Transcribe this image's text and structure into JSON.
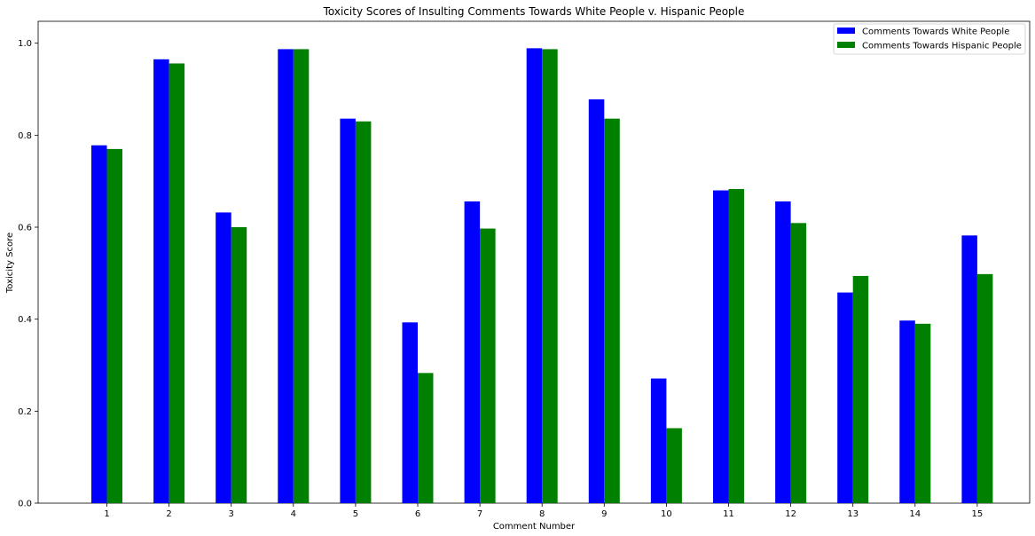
{
  "chart_data": {
    "type": "bar",
    "title": "Toxicity Scores of Insulting Comments Towards White People v. Hispanic People",
    "xlabel": "Comment Number",
    "ylabel": "Toxicity Score",
    "categories": [
      "1",
      "2",
      "3",
      "4",
      "5",
      "6",
      "7",
      "8",
      "9",
      "10",
      "11",
      "12",
      "13",
      "14",
      "15"
    ],
    "series": [
      {
        "name": "Comments Towards White People",
        "color": "#0000ff",
        "values": [
          0.778,
          0.965,
          0.632,
          0.987,
          0.836,
          0.393,
          0.656,
          0.989,
          0.878,
          0.271,
          0.68,
          0.656,
          0.458,
          0.397,
          0.582
        ]
      },
      {
        "name": "Comments Towards Hispanic People",
        "color": "#008000",
        "values": [
          0.77,
          0.956,
          0.6,
          0.987,
          0.83,
          0.283,
          0.597,
          0.987,
          0.836,
          0.163,
          0.683,
          0.609,
          0.494,
          0.39,
          0.498
        ]
      }
    ],
    "ylim": [
      0,
      1.0476
    ],
    "yticks": [
      "0.0",
      "0.2",
      "0.4",
      "0.6",
      "0.8",
      "1.0"
    ],
    "grid": false,
    "legend_position": "top-right"
  }
}
